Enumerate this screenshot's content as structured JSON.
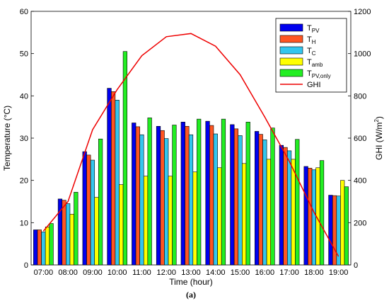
{
  "caption": "(a)",
  "chart_data": {
    "type": "bar",
    "xlabel": "Time (hour)",
    "ylabel": "Temperature (°C)",
    "y2label": {
      "main": "GHI (W/m",
      "sup": "2",
      "tail": ")"
    },
    "ylim": [
      0,
      60
    ],
    "y2lim": [
      0,
      1200
    ],
    "yticks": [
      0,
      10,
      20,
      30,
      40,
      50,
      60
    ],
    "y2ticks": [
      0,
      200,
      400,
      600,
      800,
      1000,
      1200
    ],
    "categories": [
      "07:00",
      "08:00",
      "09:00",
      "10:00",
      "11:00",
      "12:00",
      "13:00",
      "14:00",
      "15:00",
      "16:00",
      "17:00",
      "18:00",
      "19:00"
    ],
    "legend_position": "top-right",
    "series": [
      {
        "name": "T",
        "sub": "PV",
        "color": "#0000ee",
        "values": [
          8.3,
          15.6,
          26.8,
          41.8,
          33.6,
          32.8,
          33.8,
          34.0,
          33.2,
          31.6,
          28.3,
          23.3,
          16.5
        ]
      },
      {
        "name": "T",
        "sub": "H",
        "color": "#ff5522",
        "values": [
          8.3,
          15.3,
          26.0,
          41.0,
          32.7,
          31.8,
          32.8,
          33.0,
          32.2,
          30.9,
          27.8,
          22.9,
          16.4
        ]
      },
      {
        "name": "T",
        "sub": "C",
        "color": "#33c6ee",
        "values": [
          7.8,
          14.5,
          24.8,
          39.0,
          30.8,
          29.9,
          30.8,
          31.0,
          30.6,
          29.6,
          27.0,
          22.5,
          16.3
        ]
      },
      {
        "name": "T",
        "sub": "amb",
        "color": "#ffff00",
        "values": [
          9.0,
          12.0,
          16.0,
          19.0,
          21.0,
          21.0,
          22.0,
          23.0,
          24.0,
          25.0,
          25.0,
          23.0,
          20.0
        ]
      },
      {
        "name": "T",
        "sub": "PV,only",
        "color": "#22ee22",
        "values": [
          9.8,
          17.2,
          29.8,
          50.5,
          34.8,
          33.1,
          34.5,
          34.5,
          33.8,
          32.4,
          29.7,
          24.7,
          18.5
        ]
      }
    ],
    "line_series": {
      "name": "GHI",
      "color": "#ee0000",
      "axis": "right",
      "x": [
        0,
        1,
        2,
        3,
        4,
        5,
        6,
        7,
        8,
        9,
        10,
        11,
        12
      ],
      "values": [
        160,
        300,
        640,
        830,
        990,
        1080,
        1095,
        1035,
        900,
        700,
        490,
        250,
        40
      ]
    }
  }
}
